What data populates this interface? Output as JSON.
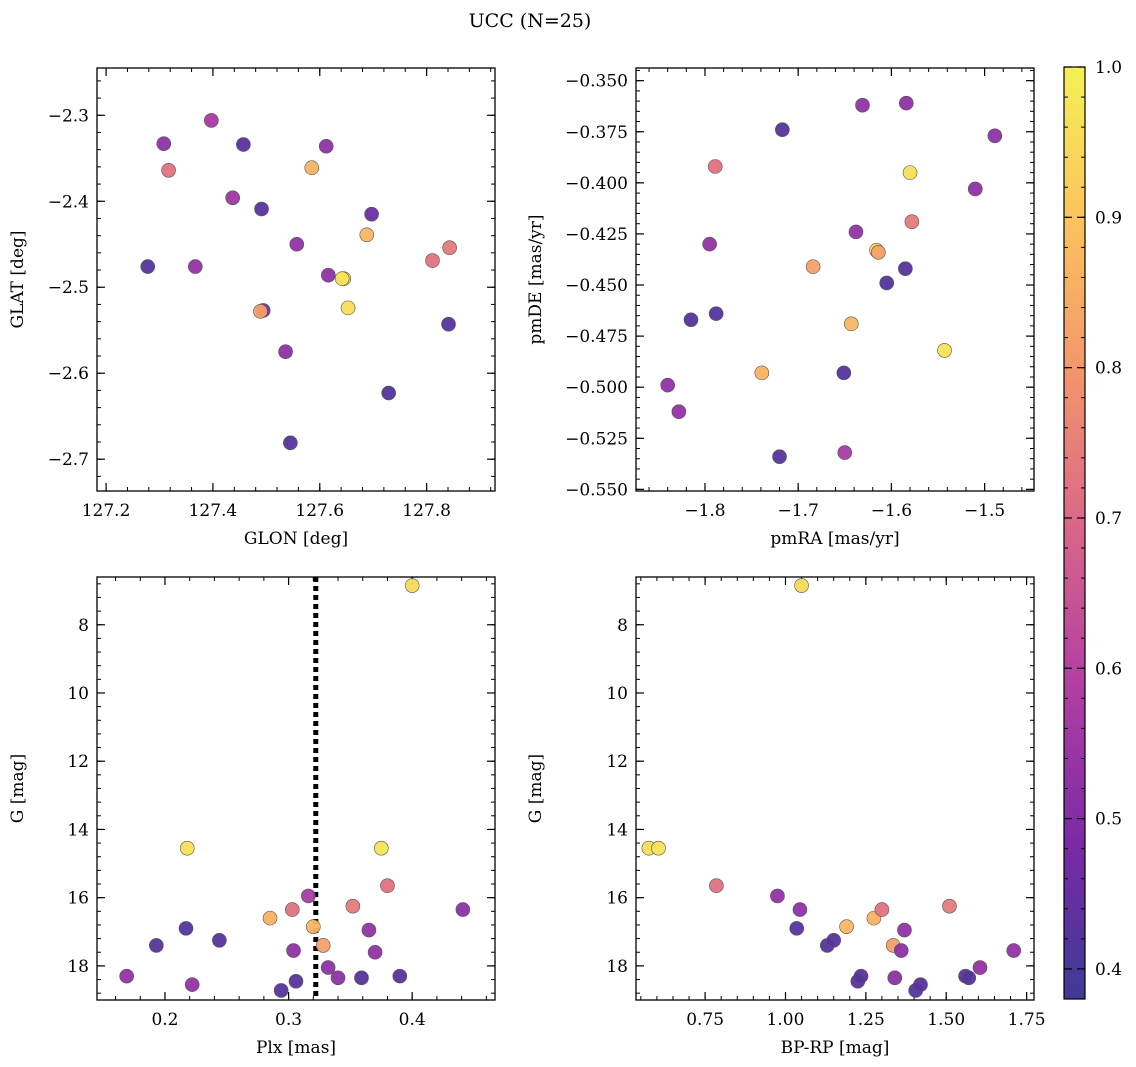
{
  "suptitle": "UCC (N=25)",
  "chart_data": [
    {
      "type": "scatter",
      "xlabel": "GLON [deg]",
      "ylabel": "GLAT [deg]",
      "xlim": [
        127.183,
        127.928
      ],
      "ylim": [
        -2.737,
        -2.245
      ],
      "xticks": [
        127.2,
        127.4,
        127.6,
        127.8
      ],
      "xtick_labels": [
        "127.2",
        "127.4",
        "127.6",
        "127.8"
      ],
      "yticks": [
        -2.3,
        -2.4,
        -2.5,
        -2.6,
        -2.7
      ],
      "ytick_labels": [
        "−2.3",
        "−2.4",
        "−2.5",
        "−2.6",
        "−2.7"
      ],
      "x": [
        127.278,
        127.308,
        127.317,
        127.367,
        127.397,
        127.437,
        127.457,
        127.491,
        127.494,
        127.489,
        127.536,
        127.545,
        127.557,
        127.585,
        127.612,
        127.616,
        127.645,
        127.642,
        127.653,
        127.688,
        127.697,
        127.729,
        127.811,
        127.843,
        127.841
      ],
      "y": [
        -2.476,
        -2.333,
        -2.364,
        -2.476,
        -2.306,
        -2.396,
        -2.334,
        -2.409,
        -2.527,
        -2.528,
        -2.575,
        -2.681,
        -2.45,
        -2.361,
        -2.336,
        -2.486,
        -2.49,
        -2.49,
        -2.524,
        -2.439,
        -2.415,
        -2.623,
        -2.469,
        -2.454,
        -2.543
      ],
      "c": [
        0.42,
        0.52,
        0.72,
        0.53,
        0.57,
        0.55,
        0.43,
        0.42,
        0.48,
        0.82,
        0.52,
        0.42,
        0.53,
        0.86,
        0.52,
        0.52,
        0.95,
        0.97,
        0.96,
        0.87,
        0.45,
        0.42,
        0.72,
        0.74,
        0.42
      ]
    },
    {
      "type": "scatter",
      "xlabel": "pmRA [mas/yr]",
      "ylabel": "pmDE [mas/yr]",
      "xlim": [
        -1.874,
        -1.447
      ],
      "ylim": [
        -0.5508,
        -0.3438
      ],
      "xticks": [
        -1.8,
        -1.7,
        -1.6,
        -1.5
      ],
      "xtick_labels": [
        "−1.8",
        "−1.7",
        "−1.6",
        "−1.5"
      ],
      "yticks": [
        -0.35,
        -0.375,
        -0.4,
        -0.425,
        -0.45,
        -0.475,
        -0.5,
        -0.525,
        -0.55
      ],
      "ytick_labels": [
        "−0.350",
        "−0.375",
        "−0.400",
        "−0.425",
        "−0.450",
        "−0.475",
        "−0.500",
        "−0.525",
        "−0.550"
      ],
      "x": [
        -1.84,
        -1.828,
        -1.815,
        -1.795,
        -1.789,
        -1.788,
        -1.739,
        -1.72,
        -1.717,
        -1.684,
        -1.651,
        -1.65,
        -1.643,
        -1.638,
        -1.631,
        -1.616,
        -1.614,
        -1.605,
        -1.585,
        -1.584,
        -1.58,
        -1.578,
        -1.543,
        -1.51,
        -1.489
      ],
      "y": [
        -0.499,
        -0.512,
        -0.467,
        -0.43,
        -0.392,
        -0.464,
        -0.493,
        -0.534,
        -0.374,
        -0.441,
        -0.493,
        -0.532,
        -0.469,
        -0.424,
        -0.362,
        -0.433,
        -0.434,
        -0.449,
        -0.442,
        -0.361,
        -0.395,
        -0.419,
        -0.482,
        -0.403,
        -0.377
      ],
      "c": [
        0.53,
        0.53,
        0.42,
        0.53,
        0.72,
        0.42,
        0.86,
        0.42,
        0.42,
        0.82,
        0.42,
        0.57,
        0.87,
        0.53,
        0.53,
        0.95,
        0.82,
        0.42,
        0.42,
        0.52,
        0.96,
        0.74,
        0.97,
        0.52,
        0.52
      ]
    },
    {
      "type": "scatter",
      "xlabel": "Plx [mas]",
      "ylabel": "G [mag]",
      "xlim": [
        0.145,
        0.467
      ],
      "ylim": [
        19.0,
        6.6
      ],
      "xticks": [
        0.2,
        0.3,
        0.4
      ],
      "xtick_labels": [
        "0.2",
        "0.3",
        "0.4"
      ],
      "yticks": [
        8,
        10,
        12,
        14,
        16,
        18
      ],
      "ytick_labels": [
        "8",
        "10",
        "12",
        "14",
        "16",
        "18"
      ],
      "vline": 0.322,
      "x": [
        0.169,
        0.193,
        0.217,
        0.218,
        0.222,
        0.244,
        0.285,
        0.294,
        0.303,
        0.304,
        0.306,
        0.316,
        0.32,
        0.328,
        0.332,
        0.34,
        0.352,
        0.359,
        0.365,
        0.37,
        0.375,
        0.38,
        0.39,
        0.4,
        0.441
      ],
      "y": [
        18.3,
        17.4,
        16.9,
        14.55,
        18.55,
        17.25,
        16.6,
        18.72,
        16.35,
        17.55,
        18.45,
        15.95,
        16.85,
        17.4,
        18.05,
        18.35,
        16.25,
        18.35,
        16.95,
        17.6,
        14.55,
        15.65,
        18.3,
        6.85,
        16.35
      ],
      "c": [
        0.53,
        0.42,
        0.42,
        0.96,
        0.53,
        0.42,
        0.86,
        0.42,
        0.72,
        0.52,
        0.42,
        0.57,
        0.87,
        0.82,
        0.52,
        0.52,
        0.74,
        0.42,
        0.53,
        0.53,
        0.97,
        0.72,
        0.42,
        0.95,
        0.52
      ]
    },
    {
      "type": "scatter",
      "xlabel": "BP-RP [mag]",
      "ylabel": "G [mag]",
      "xlim": [
        0.535,
        1.773
      ],
      "ylim": [
        19.0,
        6.6
      ],
      "xticks": [
        0.75,
        1.0,
        1.25,
        1.5,
        1.75
      ],
      "xtick_labels": [
        "0.75",
        "1.00",
        "1.25",
        "1.50",
        "1.75"
      ],
      "yticks": [
        8,
        10,
        12,
        14,
        16,
        18
      ],
      "ytick_labels": [
        "8",
        "10",
        "12",
        "14",
        "16",
        "18"
      ],
      "x": [
        0.575,
        0.605,
        0.785,
        0.975,
        1.035,
        1.045,
        1.05,
        1.13,
        1.15,
        1.19,
        1.225,
        1.235,
        1.275,
        1.3,
        1.335,
        1.34,
        1.36,
        1.37,
        1.405,
        1.42,
        1.51,
        1.56,
        1.57,
        1.605,
        1.71
      ],
      "y": [
        14.55,
        14.55,
        15.65,
        15.95,
        16.9,
        16.35,
        6.85,
        17.4,
        17.25,
        16.85,
        18.45,
        18.3,
        16.6,
        16.35,
        17.4,
        18.35,
        17.55,
        16.95,
        18.72,
        18.55,
        16.25,
        18.3,
        18.35,
        18.05,
        17.55
      ],
      "c": [
        0.96,
        0.97,
        0.72,
        0.53,
        0.42,
        0.52,
        0.95,
        0.42,
        0.42,
        0.87,
        0.42,
        0.42,
        0.86,
        0.72,
        0.82,
        0.52,
        0.52,
        0.53,
        0.42,
        0.42,
        0.74,
        0.42,
        0.42,
        0.53,
        0.53
      ]
    }
  ],
  "colorbar": {
    "cmap": "plasma",
    "range": [
      0.38,
      1.0
    ],
    "ticks": [
      0.4,
      0.5,
      0.6,
      0.7,
      0.8,
      0.9,
      1.0
    ],
    "tick_labels": [
      "0.4",
      "0.5",
      "0.6",
      "0.7",
      "0.8",
      "0.9",
      "1.0"
    ],
    "colormap_stops": [
      "#3e3a96",
      "#7a2aa6",
      "#b03ea2",
      "#d8648a",
      "#f2946c",
      "#fcc25e",
      "#f5f056"
    ]
  },
  "vline_color": "#000000",
  "marker_edge_color": "#555555"
}
